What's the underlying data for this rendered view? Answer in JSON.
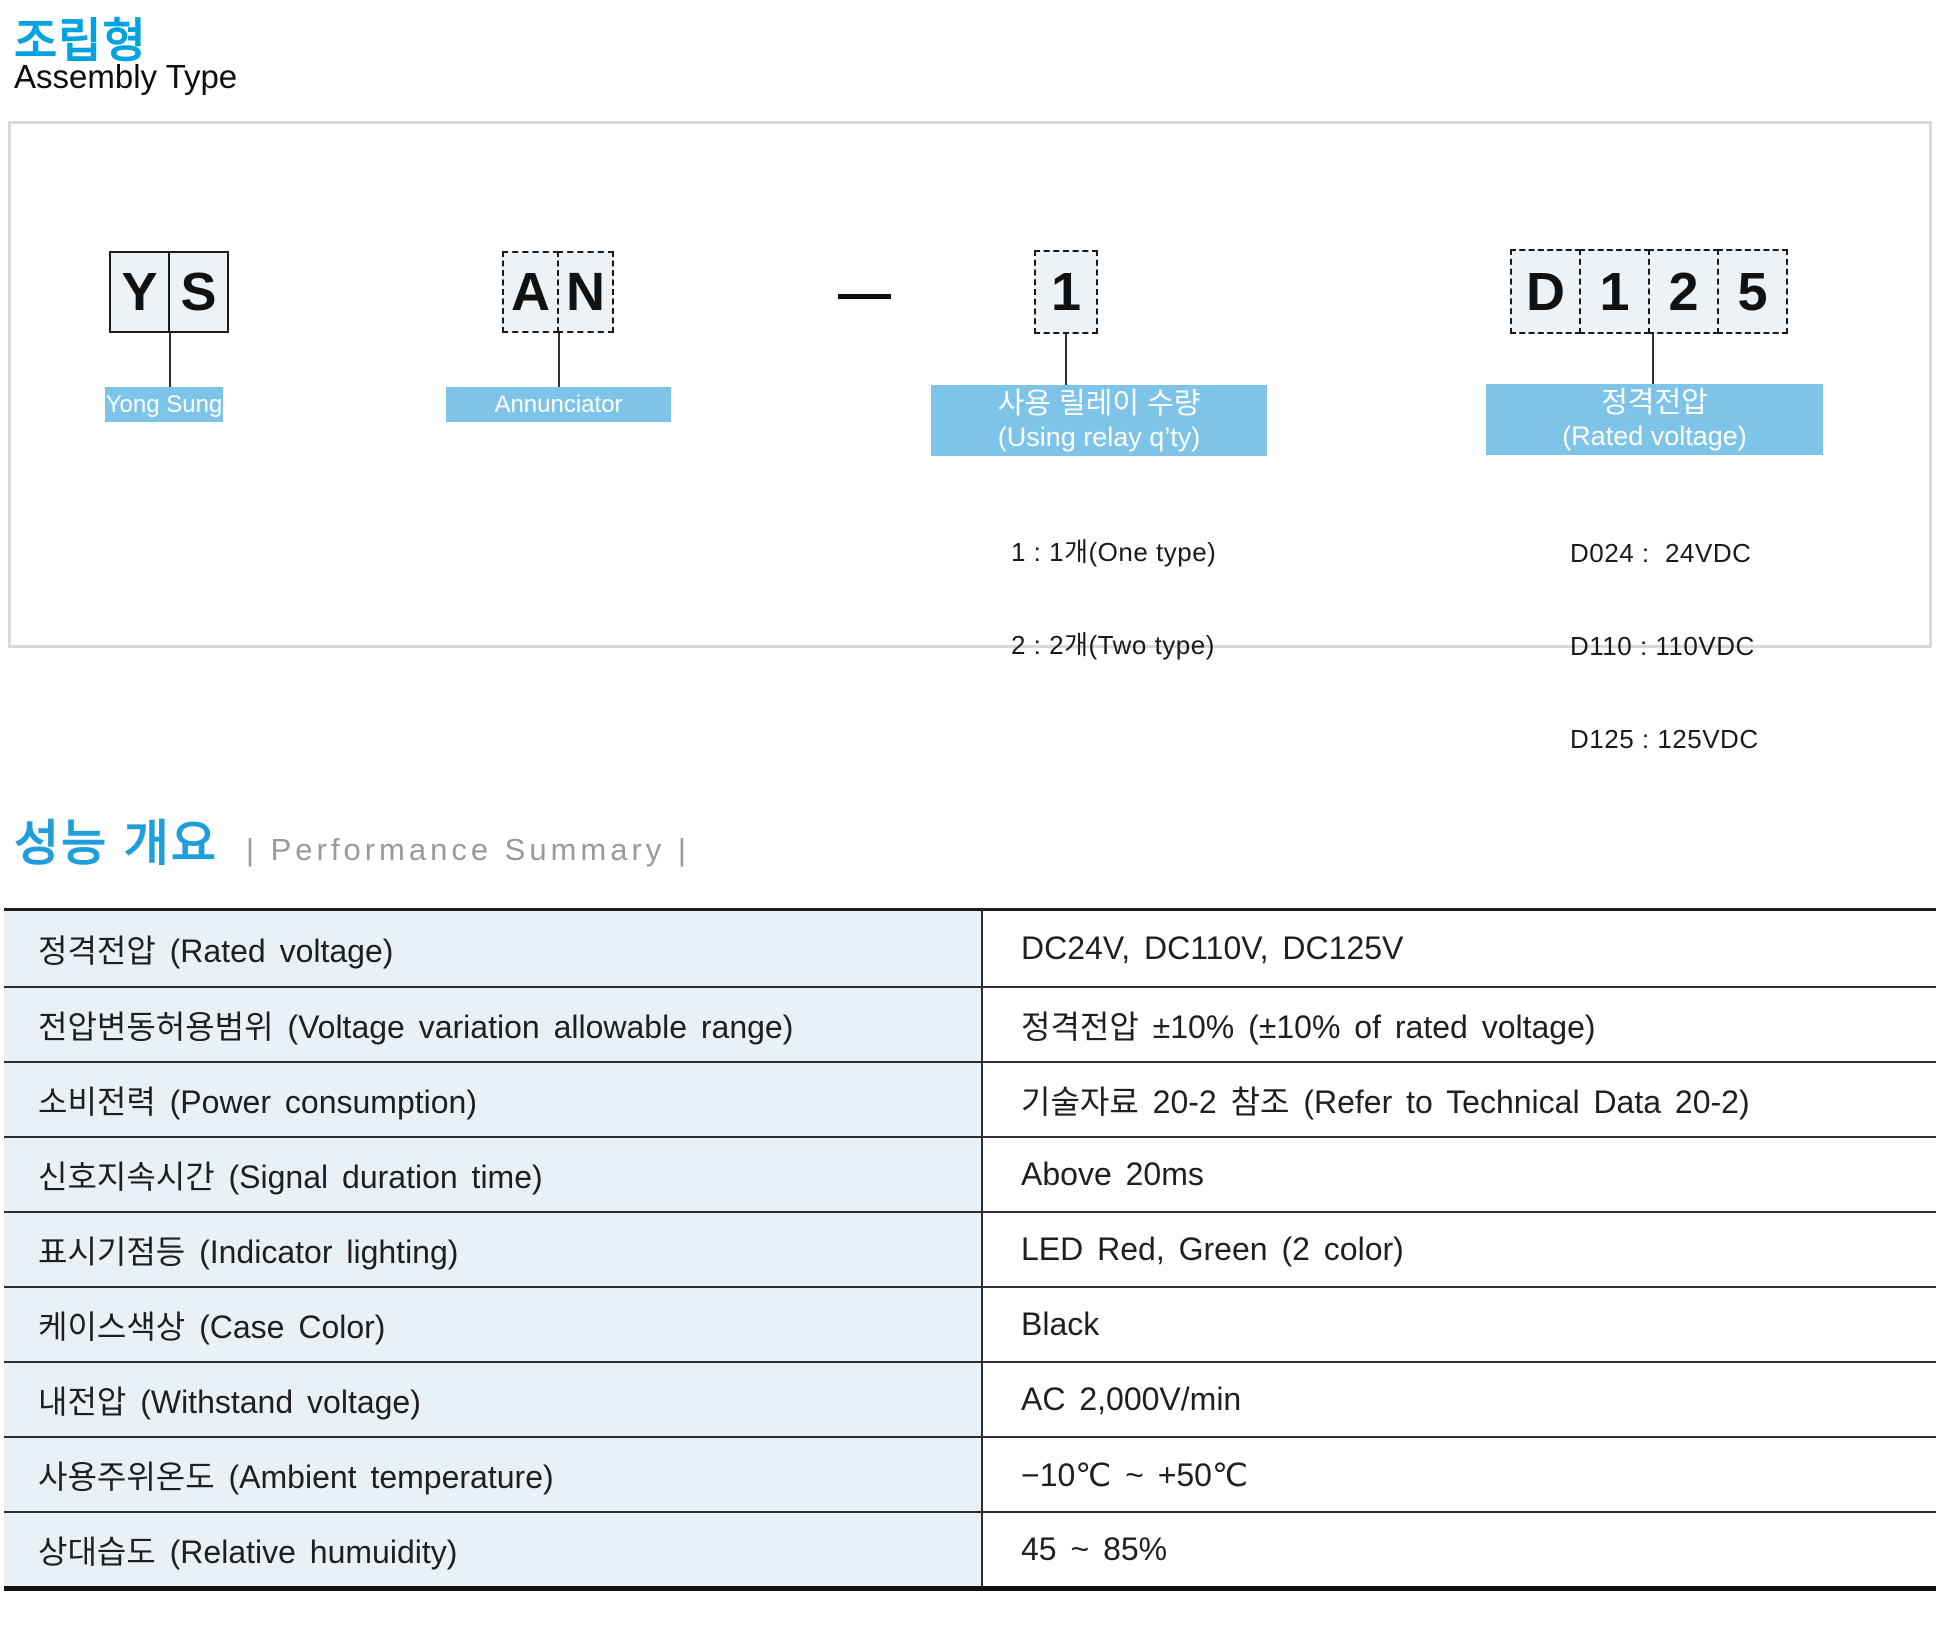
{
  "page": {
    "title_ko": "조립형",
    "title_en": "Assembly Type"
  },
  "diagram": {
    "separator": "—",
    "groups": [
      {
        "cells": [
          "Y",
          "S"
        ],
        "label_lines": [
          "Yong Sung"
        ],
        "options": []
      },
      {
        "cells": [
          "A",
          "N"
        ],
        "label_lines": [
          "Annunciator"
        ],
        "options": []
      },
      {
        "cells": [
          "1"
        ],
        "label_lines": [
          "사용 릴레이 수량",
          "(Using relay q’ty)"
        ],
        "options": [
          "1 : 1개(One type)",
          "2 : 2개(Two type)"
        ]
      },
      {
        "cells": [
          "D",
          "1",
          "2",
          "5"
        ],
        "label_lines": [
          "정격전압",
          "(Rated voltage)"
        ],
        "options": [
          "D024 :  24VDC",
          "D110 : 110VDC",
          "D125 : 125VDC"
        ]
      }
    ]
  },
  "performance": {
    "title_ko": "성능 개요",
    "title_en": "| Performance Summary |",
    "rows": [
      {
        "label": "정격전압 (Rated voltage)",
        "value": "DC24V, DC110V, DC125V"
      },
      {
        "label": "전압변동허용범위 (Voltage variation allowable range)",
        "value": "정격전압 ±10% (±10% of rated voltage)"
      },
      {
        "label": "소비전력 (Power consumption)",
        "value": "기술자료 20-2 참조 (Refer to Technical Data 20-2)"
      },
      {
        "label": "신호지속시간 (Signal duration time)",
        "value": "Above 20ms"
      },
      {
        "label": "표시기점등 (Indicator lighting)",
        "value": "LED Red, Green (2 color)"
      },
      {
        "label": "케이스색상 (Case Color)",
        "value": "Black"
      },
      {
        "label": "내전압 (Withstand voltage)",
        "value": "AC 2,000V/min"
      },
      {
        "label": "사용주위온도 (Ambient temperature)",
        "value": "−10℃ ~ +50℃"
      },
      {
        "label": "상대습도 (Relative humuidity)",
        "value": "45 ~ 85%"
      }
    ]
  },
  "colors": {
    "accent_blue": "#00a3e0",
    "header_blue": "#1e9fdb",
    "label_blue": "#7dc4e8",
    "code_cell_bg": "#edf2f6",
    "table_label_bg": "#e9f1f6",
    "panel_border_gray": "#d8d8d8"
  }
}
